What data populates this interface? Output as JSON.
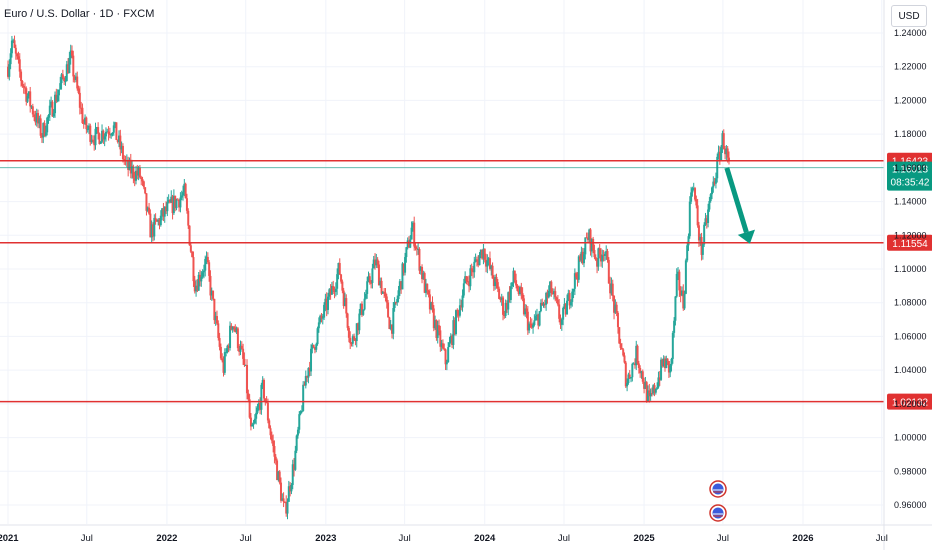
{
  "header": {
    "symbol_title": "Euro / U.S. Dollar · 1D · FXCM",
    "currency": "USD"
  },
  "colors": {
    "up": "#26a69a",
    "down": "#ef5350",
    "level_line": "#e03131",
    "current_price": "#089981",
    "grid": "#f0f3fa"
  },
  "chart_data": {
    "type": "candlestick",
    "title": "Euro / U.S. Dollar · 1D · FXCM",
    "ylim": [
      0.95,
      1.245
    ],
    "y_ticks": [
      "1.24000",
      "1.22000",
      "1.20000",
      "1.18000",
      "1.16000",
      "1.14000",
      "1.12000",
      "1.10000",
      "1.08000",
      "1.06000",
      "1.04000",
      "1.02000",
      "1.00000",
      "0.98000",
      "0.96000"
    ],
    "x_ticks": [
      "2021",
      "Jul",
      "2022",
      "Jul",
      "2023",
      "Jul",
      "2024",
      "Jul",
      "2025",
      "Jul",
      "2026",
      "Jul"
    ],
    "x_ticks_bold": [
      "2021",
      "2022",
      "2023",
      "2024",
      "2025",
      "2026"
    ],
    "price_path": [
      [
        "2021-01",
        1.22
      ],
      [
        "2021-01-10",
        1.235
      ],
      [
        "2021-02",
        1.212
      ],
      [
        "2021-03-20",
        1.18
      ],
      [
        "2021-05-25",
        1.225
      ],
      [
        "2021-06-25",
        1.185
      ],
      [
        "2021-07-20",
        1.178
      ],
      [
        "2021-08-30",
        1.185
      ],
      [
        "2021-10-01",
        1.16
      ],
      [
        "2021-11-01",
        1.155
      ],
      [
        "2021-11-25",
        1.122
      ],
      [
        "2022-01-01",
        1.135
      ],
      [
        "2022-02-10",
        1.145
      ],
      [
        "2022-03-07",
        1.09
      ],
      [
        "2022-04-01",
        1.105
      ],
      [
        "2022-05-10",
        1.04
      ],
      [
        "2022-06-01",
        1.07
      ],
      [
        "2022-06-30",
        1.04
      ],
      [
        "2022-07-14",
        1.0
      ],
      [
        "2022-08-10",
        1.03
      ],
      [
        "2022-09-01",
        0.995
      ],
      [
        "2022-09-28",
        0.955
      ],
      [
        "2022-10-20",
        0.985
      ],
      [
        "2022-11-15",
        1.035
      ],
      [
        "2022-12-15",
        1.065
      ],
      [
        "2023-02-01",
        1.1
      ],
      [
        "2023-03-01",
        1.055
      ],
      [
        "2023-04-25",
        1.105
      ],
      [
        "2023-05-31",
        1.065
      ],
      [
        "2023-07-18",
        1.125
      ],
      [
        "2023-08-20",
        1.085
      ],
      [
        "2023-10-03",
        1.045
      ],
      [
        "2023-11-15",
        1.09
      ],
      [
        "2023-12-28",
        1.112
      ],
      [
        "2024-02-15",
        1.075
      ],
      [
        "2024-03-08",
        1.095
      ],
      [
        "2024-04-16",
        1.063
      ],
      [
        "2024-06-01",
        1.088
      ],
      [
        "2024-06-25",
        1.068
      ],
      [
        "2024-08-26",
        1.12
      ],
      [
        "2024-09-15",
        1.105
      ],
      [
        "2024-10-01",
        1.113
      ],
      [
        "2024-11-22",
        1.033
      ],
      [
        "2024-12-15",
        1.05
      ],
      [
        "2025-01-13",
        1.02
      ],
      [
        "2025-02-15",
        1.045
      ],
      [
        "2025-03-03",
        1.04
      ],
      [
        "2025-03-18",
        1.095
      ],
      [
        "2025-04-01",
        1.08
      ],
      [
        "2025-04-21",
        1.155
      ],
      [
        "2025-05-12",
        1.11
      ],
      [
        "2025-06-01",
        1.14
      ],
      [
        "2025-07-01",
        1.178
      ],
      [
        "2025-07-15",
        1.16
      ]
    ],
    "levels": [
      {
        "price": 1.16423,
        "label": "1.16423"
      },
      {
        "price": 1.11554,
        "label": "1.11554"
      },
      {
        "price": 1.02132,
        "label": "1.02132"
      }
    ],
    "current_price": {
      "price": 1.16013,
      "label": "1.16013",
      "countdown": "08:35:42"
    },
    "arrow": {
      "from": [
        "2025-07-10",
        1.16
      ],
      "to": [
        "2025-09-01",
        1.115
      ]
    },
    "event_icons": [
      "us-flag-icon",
      "us-flag-icon"
    ]
  }
}
